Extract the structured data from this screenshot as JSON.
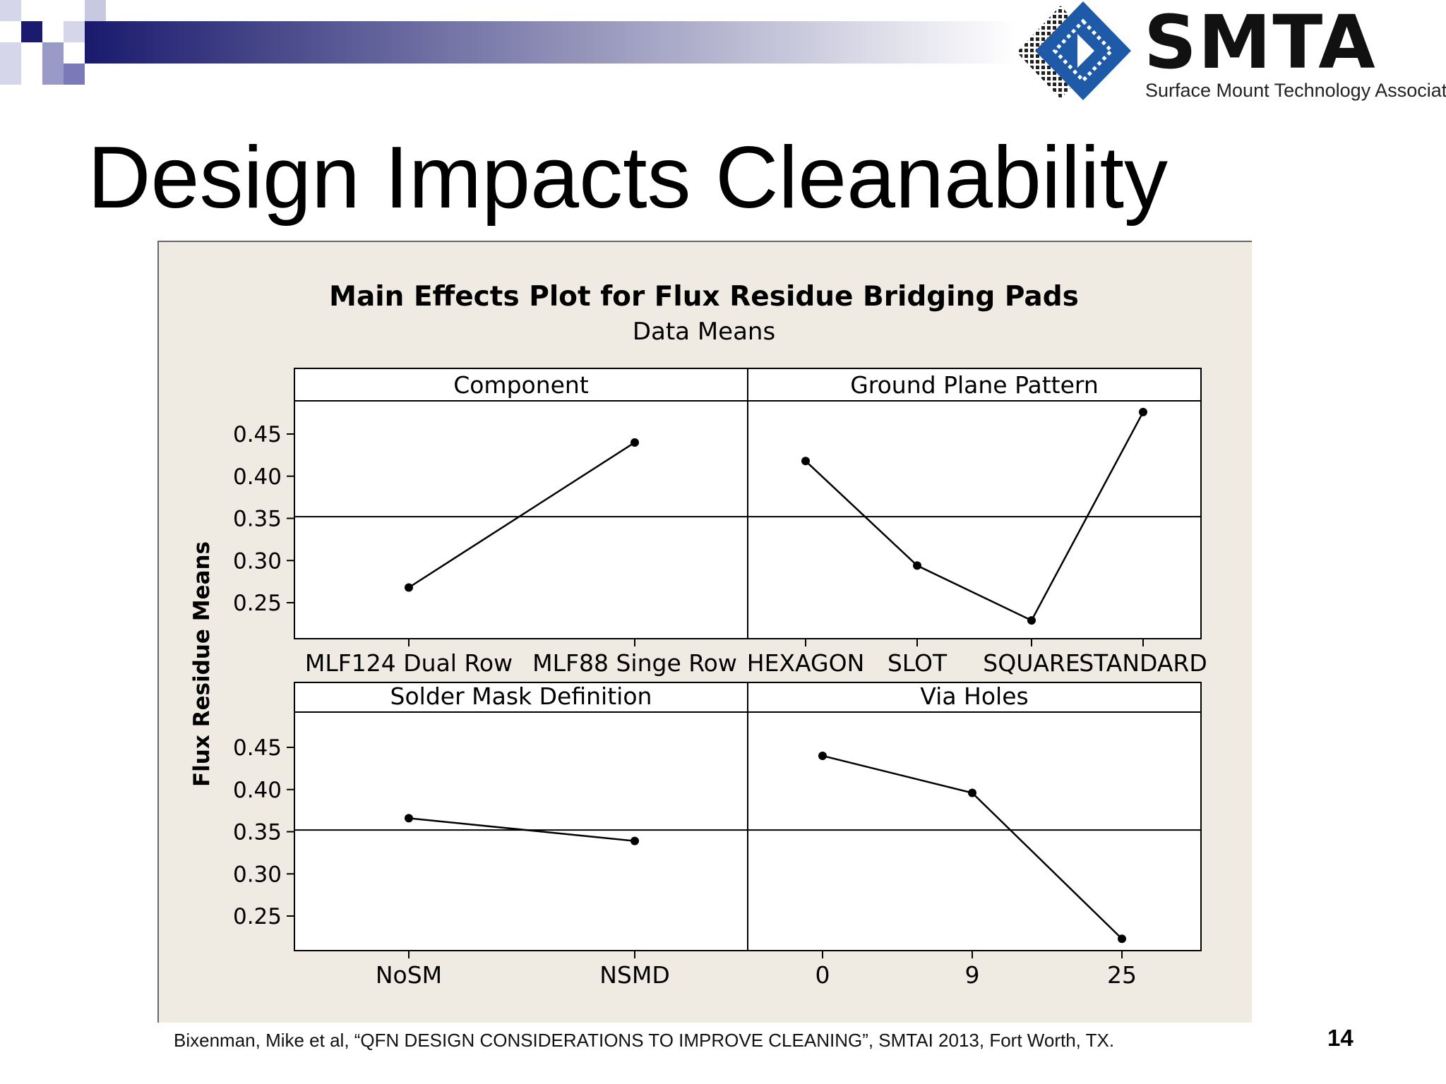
{
  "slide": {
    "title": "Design Impacts Cleanability",
    "citation": "Bixenman, Mike et al, “QFN DESIGN CONSIDERATIONS TO IMPROVE CLEANING”, SMTAI 2013, Fort Worth, TX.",
    "page_number": "14"
  },
  "logo": {
    "name": "SMTA",
    "subtitle": "Surface Mount Technology Association",
    "colors": {
      "diamond": "#1e5aa8",
      "text": "#111111"
    }
  },
  "colors": {
    "banner_dark": "#1a1a6e",
    "chart_bg": "#f0ebe2",
    "line": "#000000"
  },
  "chart_data": {
    "type": "line",
    "title": "Main Effects Plot for Flux Residue Bridging Pads",
    "subtitle": "Data Means",
    "ylabel": "Flux Residue Means",
    "ylim": [
      0.2,
      0.485
    ],
    "yticks": [
      "0.45",
      "0.40",
      "0.35",
      "0.30",
      "0.25"
    ],
    "overall_mean": 0.352,
    "panels": [
      {
        "name": "Component",
        "categories": [
          "MLF124 Dual Row",
          "MLF88 Singe Row"
        ],
        "values": [
          0.268,
          0.44
        ]
      },
      {
        "name": "Ground Plane Pattern",
        "categories": [
          "HEXAGON",
          "SLOT",
          "SQUARE",
          "STANDARD"
        ],
        "values": [
          0.418,
          0.294,
          0.229,
          0.476
        ]
      },
      {
        "name": "Solder Mask Definition",
        "categories": [
          "NoSM",
          "NSMD"
        ],
        "values": [
          0.366,
          0.339
        ]
      },
      {
        "name": "Via Holes",
        "categories": [
          "0",
          "9",
          "25"
        ],
        "values": [
          0.44,
          0.396,
          0.223
        ]
      }
    ]
  }
}
